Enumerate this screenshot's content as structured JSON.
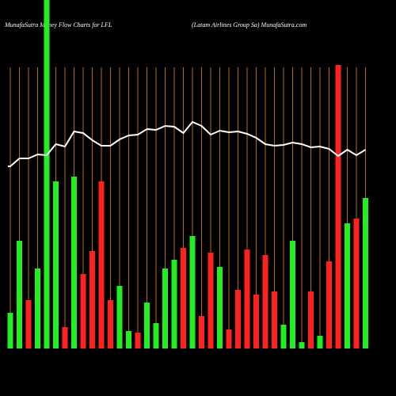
{
  "chart_data": {
    "type": "bar-line",
    "title": "MunafaSutra  Money Flow  Charts for LFL",
    "subtitle": "(Latam Airlines Group Sa) MunafaSutra.com",
    "categories": [
      null,
      null,
      null,
      null,
      null,
      null,
      null,
      null,
      null,
      null,
      null,
      null,
      null,
      null,
      null,
      null,
      null,
      null,
      null,
      null,
      null,
      null,
      null,
      null,
      null,
      null,
      null,
      null,
      null,
      null,
      null,
      null,
      null,
      null,
      null,
      null,
      null,
      null,
      null,
      null
    ],
    "series": [
      {
        "type": "bar",
        "values": [
          45,
          136,
          61,
          101,
          440,
          211,
          27,
          217,
          94,
          123,
          211,
          61,
          79,
          22,
          20,
          58,
          32,
          101,
          112,
          127,
          142,
          41,
          121,
          103,
          24,
          74,
          125,
          68,
          118,
          72,
          30,
          136,
          8,
          72,
          16,
          110,
          358,
          158,
          164,
          190
        ],
        "colors": [
          "#22ee22",
          "#22ee22",
          "#ff2020",
          "#22ee22",
          "#22ee22",
          "#22ee22",
          "#ff2020",
          "#22ee22",
          "#ff2020",
          "#ff2020",
          "#ff2020",
          "#ff2020",
          "#22ee22",
          "#22ee22",
          "#ff2020",
          "#22ee22",
          "#22ee22",
          "#22ee22",
          "#22ee22",
          "#ff2020",
          "#22ee22",
          "#ff2020",
          "#ff2020",
          "#22ee22",
          "#ff2020",
          "#ff2020",
          "#ff2020",
          "#ff2020",
          "#ff2020",
          "#ff2020",
          "#22ee22",
          "#22ee22",
          "#22ee22",
          "#ff2020",
          "#22ee22",
          "#ff2020",
          "#ff2020",
          "#22ee22",
          "#ff2020",
          "#22ee22"
        ]
      },
      {
        "type": "line",
        "color": "#ffffff",
        "values": [
          230,
          240,
          240,
          245,
          244,
          258,
          255,
          274,
          272,
          263,
          256,
          256,
          264,
          269,
          270,
          277,
          276,
          281,
          280,
          272,
          286,
          281,
          270,
          275,
          273,
          274,
          271,
          266,
          258,
          256,
          257,
          260,
          258,
          254,
          255,
          252,
          243,
          251,
          244,
          251
        ]
      }
    ],
    "ylim": [
      0,
      440
    ],
    "grid": true,
    "grid_color": "#b86a00"
  }
}
